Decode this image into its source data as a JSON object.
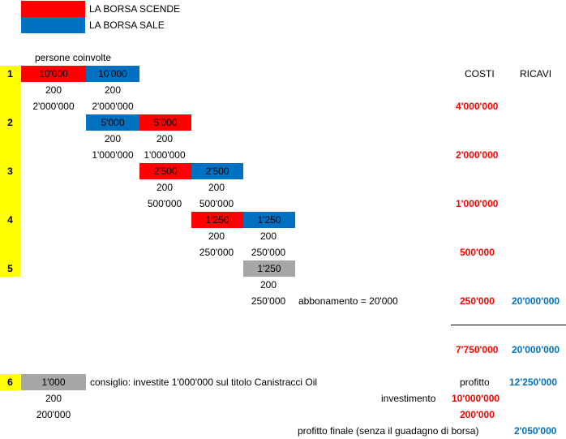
{
  "legend": {
    "down_label": "LA BORSA SCENDE",
    "up_label": "LA BORSA SALE",
    "colors": {
      "down": "#ff0000",
      "up": "#0070c0",
      "neutral": "#a6a6a6",
      "row_marker": "#ffff00"
    }
  },
  "header": {
    "people_label": "persone coinvolte",
    "costs_label": "COSTI",
    "revenue_label": "RICAVI"
  },
  "rows": {
    "r1": {
      "num": "1",
      "cells": [
        "10'000",
        "10'000"
      ],
      "count_a": "200",
      "count_b": "200",
      "amount_a": "2'000'000",
      "amount_b": "2'000'000",
      "cost": "4'000'000"
    },
    "r2": {
      "num": "2",
      "cells": [
        "5'000",
        "5'000"
      ],
      "count_a": "200",
      "count_b": "200",
      "amount_a": "1'000'000",
      "amount_b": "1'000'000",
      "cost": "2'000'000"
    },
    "r3": {
      "num": "3",
      "cells": [
        "2'500",
        "2'500"
      ],
      "count_a": "200",
      "count_b": "200",
      "amount_a": "500'000",
      "amount_b": "500'000",
      "cost": "1'000'000"
    },
    "r4": {
      "num": "4",
      "cells": [
        "1'250",
        "1'250"
      ],
      "count_a": "200",
      "count_b": "200",
      "amount_a": "250'000",
      "amount_b": "250'000",
      "cost": "500'000"
    },
    "r5": {
      "num": "5",
      "cells": [
        "1'250"
      ],
      "count_a": "200",
      "amount_a": "250'000",
      "subscription": "abbonamento = 20'000",
      "cost": "250'000",
      "revenue": "20'000'000"
    },
    "r6": {
      "num": "6",
      "cells": [
        "1'000"
      ],
      "advice": "consiglio:  investite 1'000'000 sul titolo Canistracci Oil",
      "count_a": "200",
      "amount_a": "200'000"
    }
  },
  "totals": {
    "cost_total": "7'750'000",
    "revenue_total": "20'000'000",
    "profit_label": "profitto",
    "profit_value": "12'250'000",
    "investment_label": "investimento",
    "investment_value": "10'000'000",
    "extra_cost": "200'000",
    "final_profit_label": "profitto finale (senza il guadagno di borsa)",
    "final_profit_value": "2'050'000"
  }
}
